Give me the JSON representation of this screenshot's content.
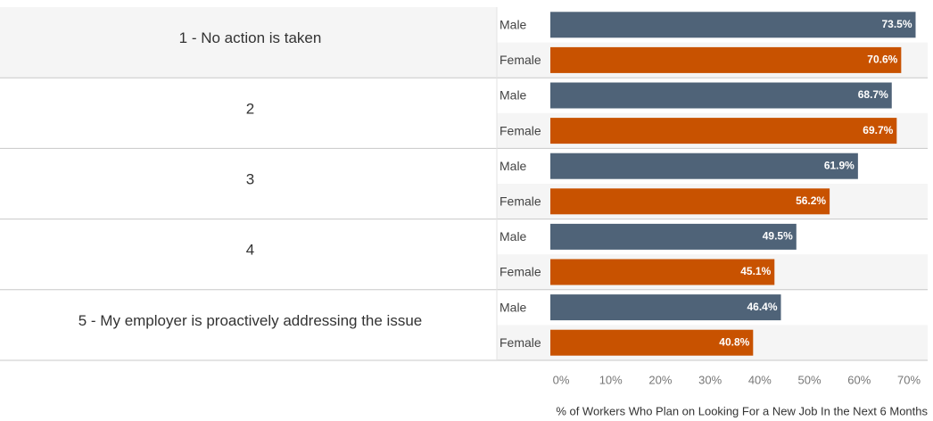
{
  "chart_data": {
    "type": "bar",
    "orientation": "horizontal",
    "categories": [
      "1 - No action is taken",
      "2",
      "3",
      "4",
      "5 - My employer is proactively addressing the issue"
    ],
    "series": [
      {
        "name": "Male",
        "color": "#4f6378",
        "values": [
          73.5,
          68.7,
          61.9,
          49.5,
          46.4
        ]
      },
      {
        "name": "Female",
        "color": "#c85200",
        "values": [
          70.6,
          69.7,
          56.2,
          45.1,
          40.8
        ]
      }
    ],
    "value_suffix": "%",
    "xlim": [
      0,
      74
    ],
    "xticks": [
      0,
      10,
      20,
      30,
      40,
      50,
      60,
      70
    ],
    "xtick_labels": [
      "0%",
      "10%",
      "20%",
      "30%",
      "40%",
      "50%",
      "60%",
      "70%"
    ],
    "xlabel": "% of Workers Who Plan on Looking For a New Job In the Next 6 Months",
    "colors": {
      "first_group_bg": "#f5f5f5",
      "row_alt_bg": "#f5f5f5",
      "divider": "#c8c8c8"
    }
  }
}
